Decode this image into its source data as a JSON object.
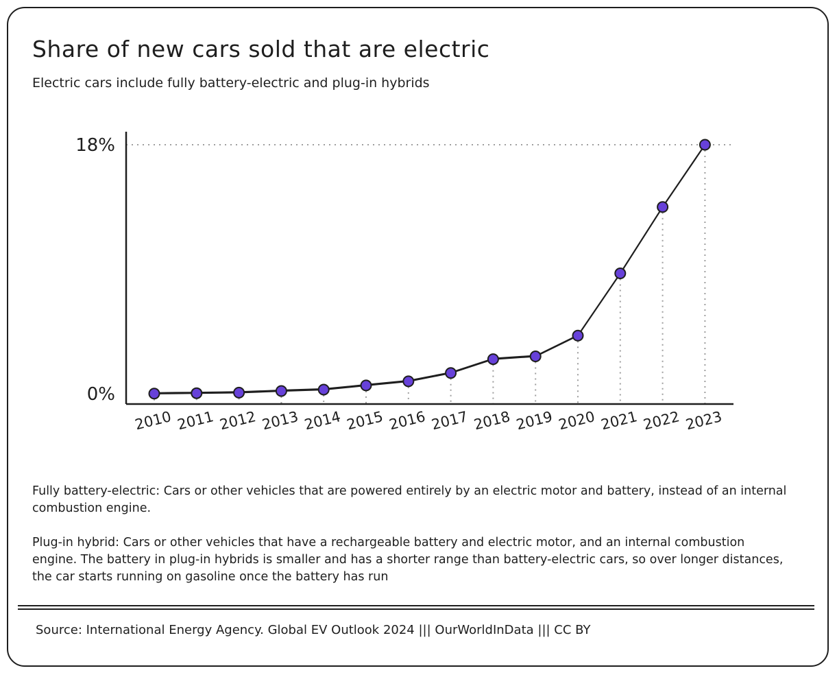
{
  "title": "Share of new cars sold that are electric",
  "subtitle": "Electric cars include fully battery-electric and plug-in hybrids",
  "chart_data": {
    "type": "line",
    "title": "Share of new cars sold that are electric",
    "subtitle": "Electric cars include fully battery-electric and plug-in hybrids",
    "xlabel": "",
    "ylabel": "",
    "categories": [
      "2010",
      "2011",
      "2012",
      "2013",
      "2014",
      "2015",
      "2016",
      "2017",
      "2018",
      "2019",
      "2020",
      "2021",
      "2022",
      "2023"
    ],
    "values": [
      0.01,
      0.04,
      0.08,
      0.2,
      0.3,
      0.6,
      0.9,
      1.5,
      2.5,
      2.7,
      4.2,
      8.7,
      13.5,
      18
    ],
    "ylim": [
      0,
      18
    ],
    "y_ticks": [
      {
        "value": 0,
        "label": "0%"
      },
      {
        "value": 18,
        "label": "18%"
      }
    ],
    "grid": false,
    "legend": "none",
    "point_color": "#6741d9",
    "line_color": "#1e1e1e",
    "dropline_color": "#9e9e9e"
  },
  "notes": [
    "Fully battery-electric: Cars or other vehicles that are powered entirely by an electric motor and battery, instead of an internal combustion engine.",
    "Plug-in hybrid: Cars or other vehicles that have a rechargeable battery and electric motor, and an internal combustion engine. The battery in plug-in hybrids is smaller and has a shorter range than battery-electric cars, so over longer distances, the car starts running on gasoline once the battery has run"
  ],
  "source": "Source: International Energy Agency. Global EV Outlook 2024 ||| OurWorldInData ||| CC BY"
}
